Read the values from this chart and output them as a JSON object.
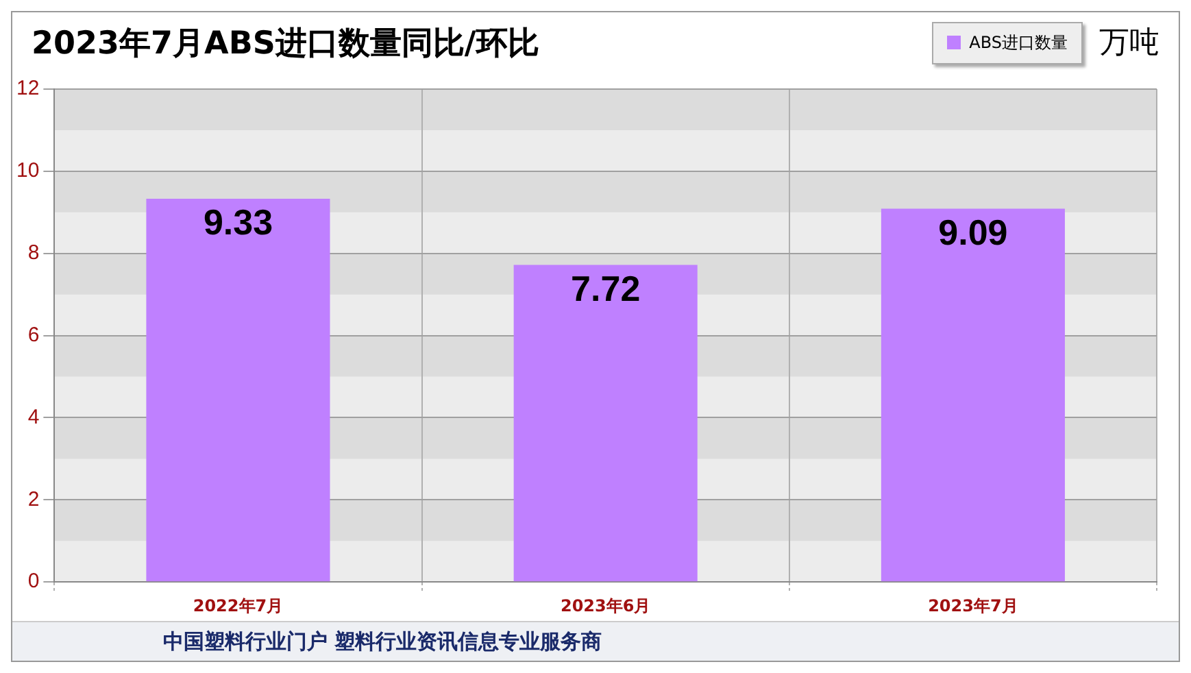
{
  "chart_data": {
    "type": "bar",
    "title": "2023年7月ABS进口数量同比/环比",
    "ylabel": "万吨",
    "categories": [
      "2022年7月",
      "2023年6月",
      "2023年7月"
    ],
    "series": [
      {
        "name": "ABS进口数量",
        "color": "#bf80ff",
        "values": [
          9.33,
          7.72,
          9.09
        ]
      }
    ],
    "bands": [
      {
        "axis": "y",
        "from": 1,
        "to": 2,
        "color": "#dcdcdc"
      },
      {
        "axis": "y",
        "from": 3,
        "to": 4,
        "color": "#dcdcdc"
      },
      {
        "axis": "y",
        "from": 5,
        "to": 6,
        "color": "#dcdcdc"
      },
      {
        "axis": "y",
        "from": 7,
        "to": 8,
        "color": "#dcdcdc"
      },
      {
        "axis": "y",
        "from": 9,
        "to": 10,
        "color": "#dcdcdc"
      },
      {
        "axis": "y",
        "from": 11,
        "to": 12,
        "color": "#dcdcdc"
      }
    ],
    "ylim": [
      0,
      12
    ],
    "yticks": [
      0,
      2,
      4,
      6,
      8,
      10,
      12
    ],
    "grid": true,
    "legend": "top right",
    "data_labels": true,
    "annotations": [
      "中国塑料行业门户 塑料行业资讯信息专业服务商"
    ]
  }
}
